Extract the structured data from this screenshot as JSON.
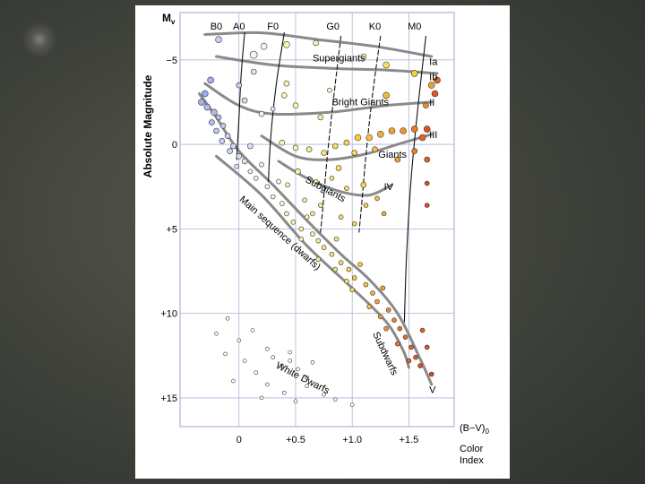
{
  "chart_data": {
    "type": "scatter",
    "title": "",
    "ylabel": "Absolute Magnitude",
    "y_axis_symbol": "Mv",
    "xlabel": "Color Index",
    "x_axis_symbol": "(B−V)0",
    "x_ticks": [
      {
        "value": 0,
        "label": "0"
      },
      {
        "value": 0.5,
        "label": "+0.5"
      },
      {
        "value": 1.0,
        "label": "+1.0"
      },
      {
        "value": 1.5,
        "label": "+1.5"
      }
    ],
    "y_ticks": [
      {
        "value": -5,
        "label": "−5"
      },
      {
        "value": 0,
        "label": "0"
      },
      {
        "value": 5,
        "label": "+5"
      },
      {
        "value": 10,
        "label": "+10"
      },
      {
        "value": 15,
        "label": "+15"
      }
    ],
    "xlim": [
      -0.52,
      1.9
    ],
    "ylim": [
      -7.8,
      16.7
    ],
    "y_inverted": true,
    "grid": true,
    "spectral_classes": [
      {
        "label": "B0",
        "x": -0.2
      },
      {
        "label": "A0",
        "x": 0.0
      },
      {
        "label": "F0",
        "x": 0.3
      },
      {
        "label": "G0",
        "x": 0.83
      },
      {
        "label": "K0",
        "x": 1.2
      },
      {
        "label": "M0",
        "x": 1.55
      }
    ],
    "luminosity_classes": [
      {
        "label": "Ia",
        "x": 1.68,
        "y": -4.9
      },
      {
        "label": "Ib",
        "x": 1.68,
        "y": -4.0
      },
      {
        "label": "II",
        "x": 1.68,
        "y": -2.5
      },
      {
        "label": "III",
        "x": 1.68,
        "y": -0.6
      },
      {
        "label": "IV",
        "x": 1.28,
        "y": 2.5
      },
      {
        "label": "V",
        "x": 1.68,
        "y": 14.5
      }
    ],
    "region_labels": [
      {
        "label": "Supergiants",
        "x": 0.65,
        "y": -4.9
      },
      {
        "label": "Bright Giants",
        "x": 0.82,
        "y": -2.3
      },
      {
        "label": "Giants",
        "x": 1.23,
        "y": 0.8
      },
      {
        "label": "Subgiants",
        "x": 0.58,
        "y": 2.2,
        "angle": 28
      },
      {
        "label": "Main sequence (dwarfs)",
        "x": 0.0,
        "y": 3.3,
        "angle": 42
      },
      {
        "label": "Subdwarfs",
        "x": 1.18,
        "y": 11.2,
        "angle": 65
      },
      {
        "label": "White Dwarfs",
        "x": 0.32,
        "y": 13.2,
        "angle": 27
      }
    ],
    "tracks": [
      {
        "name": "Ia",
        "points": [
          [
            -0.3,
            -6.5
          ],
          [
            0.2,
            -6.6
          ],
          [
            0.7,
            -6.2
          ],
          [
            1.2,
            -5.8
          ],
          [
            1.7,
            -5.2
          ]
        ]
      },
      {
        "name": "Ib",
        "points": [
          [
            -0.2,
            -5.2
          ],
          [
            0.3,
            -4.7
          ],
          [
            0.8,
            -4.5
          ],
          [
            1.3,
            -4.4
          ],
          [
            1.75,
            -4.2
          ]
        ]
      },
      {
        "name": "II",
        "points": [
          [
            -0.3,
            -3.6
          ],
          [
            0.0,
            -2.3
          ],
          [
            0.3,
            -1.8
          ],
          [
            0.8,
            -1.9
          ],
          [
            1.3,
            -2.3
          ],
          [
            1.7,
            -2.5
          ]
        ]
      },
      {
        "name": "III",
        "points": [
          [
            0.2,
            -0.5
          ],
          [
            0.5,
            0.7
          ],
          [
            0.8,
            0.9
          ],
          [
            1.1,
            0.6
          ],
          [
            1.4,
            0.0
          ],
          [
            1.7,
            -0.6
          ]
        ]
      },
      {
        "name": "IV",
        "points": [
          [
            0.35,
            1.0
          ],
          [
            0.6,
            2.0
          ],
          [
            0.9,
            2.8
          ],
          [
            1.15,
            3.0
          ],
          [
            1.35,
            2.4
          ]
        ]
      },
      {
        "name": "V",
        "points": [
          [
            -0.35,
            -3.0
          ],
          [
            -0.2,
            -1.6
          ],
          [
            0.0,
            0.4
          ],
          [
            0.3,
            2.4
          ],
          [
            0.6,
            4.5
          ],
          [
            0.9,
            6.5
          ],
          [
            1.15,
            8.0
          ],
          [
            1.4,
            10.0
          ],
          [
            1.6,
            12.7
          ],
          [
            1.7,
            14.2
          ]
        ]
      },
      {
        "name": "Subdwarfs",
        "points": [
          [
            -0.2,
            0.7
          ],
          [
            0.2,
            3.0
          ],
          [
            0.6,
            6.0
          ],
          [
            1.0,
            8.5
          ],
          [
            1.3,
            10.5
          ],
          [
            1.45,
            12.2
          ],
          [
            1.5,
            13.2
          ]
        ]
      },
      {
        "name": "boundary-1",
        "dashed": false,
        "points": [
          [
            0.05,
            -6.6
          ],
          [
            0.02,
            -4.2
          ],
          [
            0.0,
            -1.6
          ],
          [
            -0.02,
            0.9
          ]
        ]
      },
      {
        "name": "boundary-2",
        "dashed": false,
        "points": [
          [
            0.4,
            -6.6
          ],
          [
            0.33,
            -3.6
          ],
          [
            0.28,
            -0.4
          ],
          [
            0.26,
            2.2
          ]
        ]
      },
      {
        "name": "boundary-3",
        "dashed": true,
        "points": [
          [
            0.9,
            -6.4
          ],
          [
            0.84,
            -3.0
          ],
          [
            0.78,
            0.7
          ],
          [
            0.74,
            3.8
          ],
          [
            0.72,
            5.2
          ]
        ]
      },
      {
        "name": "boundary-4",
        "dashed": true,
        "points": [
          [
            1.25,
            -6.4
          ],
          [
            1.18,
            -3.0
          ],
          [
            1.12,
            0.7
          ],
          [
            1.08,
            3.8
          ],
          [
            1.06,
            5.2
          ]
        ]
      },
      {
        "name": "boundary-5",
        "dashed": false,
        "points": [
          [
            1.65,
            -6.4
          ],
          [
            1.58,
            -2.2
          ],
          [
            1.52,
            2.0
          ],
          [
            1.48,
            6.5
          ],
          [
            1.46,
            10.5
          ]
        ]
      }
    ],
    "stars": [
      [
        -0.18,
        -6.2,
        "#c8cdf5",
        6
      ],
      [
        0.13,
        -5.3,
        "#f6f7fc",
        7
      ],
      [
        0.22,
        -5.8,
        "#f6f6ee",
        6
      ],
      [
        0.42,
        -5.9,
        "#fbf5a8",
        6
      ],
      [
        0.68,
        -6.0,
        "#fbf5a8",
        5
      ],
      [
        1.1,
        -5.2,
        "#fbf0a8",
        5
      ],
      [
        1.3,
        -4.7,
        "#fbe060",
        6
      ],
      [
        1.55,
        -4.2,
        "#fbd040",
        6
      ],
      [
        1.7,
        -3.5,
        "#f0a030",
        6
      ],
      [
        1.75,
        -3.8,
        "#e86420",
        6
      ],
      [
        1.73,
        -3.0,
        "#e85020",
        6
      ],
      [
        1.3,
        -2.9,
        "#f5c030",
        6
      ],
      [
        1.65,
        -2.3,
        "#e89020",
        5
      ],
      [
        0.0,
        -3.5,
        "#c8cdf5",
        5
      ],
      [
        0.05,
        -2.6,
        "#d8dcf8",
        5
      ],
      [
        0.2,
        -1.8,
        "#f0f0fa",
        5
      ],
      [
        0.3,
        -2.1,
        "#e8e8f8",
        4
      ],
      [
        0.13,
        -4.3,
        "#e0e3fa",
        5
      ],
      [
        0.42,
        -3.6,
        "#fbf5b0",
        5
      ],
      [
        0.4,
        -2.9,
        "#fbf5b0",
        5
      ],
      [
        0.5,
        -2.3,
        "#fbf5b0",
        5
      ],
      [
        0.72,
        -1.6,
        "#fbf0a0",
        5
      ],
      [
        0.8,
        -3.2,
        "#fbf5c0",
        4
      ],
      [
        -0.25,
        -3.8,
        "#a8b0ee",
        6
      ],
      [
        -0.3,
        -3.0,
        "#9ea8ee",
        6
      ],
      [
        -0.33,
        -2.5,
        "#a8b0ee",
        6
      ],
      [
        -0.28,
        -2.2,
        "#b0b8f0",
        6
      ],
      [
        -0.22,
        -1.9,
        "#b0b8f0",
        6
      ],
      [
        -0.18,
        -1.6,
        "#b8c0f2",
        5
      ],
      [
        -0.24,
        -1.3,
        "#b8c0f2",
        5
      ],
      [
        -0.14,
        -1.1,
        "#c0c6f2",
        5
      ],
      [
        -0.2,
        -0.8,
        "#c0c6f2",
        5
      ],
      [
        -0.1,
        -0.5,
        "#c8cdf5",
        5
      ],
      [
        -0.15,
        -0.2,
        "#c8cdf5",
        5
      ],
      [
        -0.05,
        0.1,
        "#d0d5f6",
        5
      ],
      [
        -0.08,
        0.4,
        "#d0d5f6",
        5
      ],
      [
        0.0,
        0.7,
        "#dcdff8",
        5
      ],
      [
        0.05,
        1.0,
        "#e0e3fa",
        5
      ],
      [
        -0.02,
        1.3,
        "#e6e8fa",
        4
      ],
      [
        0.1,
        1.6,
        "#eeeffb",
        4
      ],
      [
        0.15,
        2.0,
        "#f4f4fc",
        4
      ],
      [
        0.1,
        0.1,
        "#dde0f8",
        5
      ],
      [
        0.2,
        1.2,
        "#f0f0fb",
        4
      ],
      [
        0.25,
        2.5,
        "#f6f6f6",
        4
      ],
      [
        0.3,
        3.1,
        "#f8f8e8",
        4
      ],
      [
        0.35,
        2.2,
        "#f6f6ee",
        4
      ],
      [
        0.38,
        3.5,
        "#fbfad8",
        4
      ],
      [
        0.42,
        4.1,
        "#fbf8c0",
        4
      ],
      [
        0.48,
        4.6,
        "#fbf6b0",
        4
      ],
      [
        0.55,
        5.0,
        "#fbf4a8",
        4
      ],
      [
        0.6,
        4.3,
        "#fbf4a8",
        4
      ],
      [
        0.65,
        5.3,
        "#fbf0a0",
        4
      ],
      [
        0.7,
        5.7,
        "#fbec90",
        4
      ],
      [
        0.75,
        6.1,
        "#fbe880",
        4
      ],
      [
        0.82,
        6.5,
        "#fbe478",
        4
      ],
      [
        0.86,
        5.6,
        "#fbe478",
        4
      ],
      [
        0.9,
        7.0,
        "#fbdd60",
        4
      ],
      [
        0.97,
        7.4,
        "#fbd650",
        4
      ],
      [
        1.02,
        7.9,
        "#fbcc40",
        4
      ],
      [
        1.07,
        7.1,
        "#fbcc40",
        4
      ],
      [
        1.12,
        8.3,
        "#f8c040",
        4
      ],
      [
        1.18,
        8.8,
        "#f6b030",
        4
      ],
      [
        1.22,
        9.3,
        "#f5a030",
        4
      ],
      [
        1.27,
        8.5,
        "#f5a030",
        4
      ],
      [
        1.32,
        9.8,
        "#f09030",
        4
      ],
      [
        1.37,
        10.4,
        "#ec8028",
        4
      ],
      [
        1.42,
        10.9,
        "#ec7828",
        4
      ],
      [
        1.47,
        11.4,
        "#e86a20",
        4
      ],
      [
        1.52,
        12.0,
        "#e86020",
        4
      ],
      [
        1.56,
        12.6,
        "#e45820",
        4
      ],
      [
        1.6,
        13.1,
        "#e45020",
        4
      ],
      [
        1.62,
        11.0,
        "#e86020",
        4
      ],
      [
        1.66,
        12.0,
        "#e45020",
        4
      ],
      [
        1.7,
        13.6,
        "#e04818",
        4
      ],
      [
        0.38,
        -0.1,
        "#fbf5b0",
        5
      ],
      [
        0.5,
        0.2,
        "#fbf0a0",
        5
      ],
      [
        0.62,
        0.3,
        "#fbec90",
        5
      ],
      [
        0.75,
        0.5,
        "#fbe470",
        5
      ],
      [
        0.85,
        0.1,
        "#fbdd60",
        5
      ],
      [
        0.95,
        -0.1,
        "#fbd650",
        5
      ],
      [
        1.05,
        -0.4,
        "#fbcc40",
        6
      ],
      [
        1.15,
        -0.4,
        "#f8c040",
        6
      ],
      [
        1.25,
        -0.6,
        "#f6b030",
        6
      ],
      [
        1.35,
        -0.8,
        "#f5a030",
        6
      ],
      [
        1.45,
        -0.8,
        "#f09030",
        6
      ],
      [
        1.55,
        -0.9,
        "#ec7828",
        6
      ],
      [
        1.62,
        -0.4,
        "#e86020",
        6
      ],
      [
        1.66,
        -0.9,
        "#e05018",
        6
      ],
      [
        0.88,
        1.4,
        "#fbdd60",
        5
      ],
      [
        1.02,
        0.5,
        "#fbd650",
        5
      ],
      [
        1.2,
        0.3,
        "#f8c040",
        5
      ],
      [
        1.4,
        0.9,
        "#f5a030",
        5
      ],
      [
        1.55,
        0.4,
        "#ec8028",
        5
      ],
      [
        1.66,
        0.9,
        "#e86020",
        5
      ],
      [
        1.66,
        2.3,
        "#e05018",
        4
      ],
      [
        1.66,
        3.6,
        "#e05018",
        4
      ],
      [
        0.52,
        1.6,
        "#fbf0a0",
        5
      ],
      [
        0.68,
        2.2,
        "#fbec90",
        4
      ],
      [
        0.82,
        2.0,
        "#fbe478",
        4
      ],
      [
        0.95,
        2.6,
        "#fbdd60",
        4
      ],
      [
        1.1,
        2.4,
        "#fbd650",
        5
      ],
      [
        1.22,
        3.2,
        "#f8c040",
        4
      ],
      [
        1.28,
        4.1,
        "#f6b030",
        4
      ],
      [
        1.12,
        3.6,
        "#fbcc40",
        4
      ],
      [
        0.72,
        3.6,
        "#fbec90",
        4
      ],
      [
        0.58,
        3.3,
        "#fbf0a0",
        4
      ],
      [
        0.9,
        4.3,
        "#fbdd60",
        4
      ],
      [
        1.02,
        4.7,
        "#fbd650",
        4
      ],
      [
        0.65,
        4.1,
        "#fbec90",
        4
      ],
      [
        0.43,
        2.4,
        "#fbf6b0",
        4
      ],
      [
        0.55,
        5.6,
        "#fbf4a8",
        4
      ],
      [
        0.7,
        6.8,
        "#fbec90",
        4
      ],
      [
        0.85,
        7.4,
        "#fbe478",
        4
      ],
      [
        1.0,
        8.6,
        "#fbd650",
        4
      ],
      [
        1.15,
        9.6,
        "#f8c040",
        4
      ],
      [
        1.3,
        10.9,
        "#f09030",
        4
      ],
      [
        1.4,
        11.8,
        "#ec7828",
        4
      ],
      [
        1.5,
        12.8,
        "#e86020",
        4
      ],
      [
        0.95,
        8.1,
        "#fbdd60",
        4
      ],
      [
        1.25,
        10.2,
        "#f5a030",
        4
      ],
      [
        -0.1,
        10.3,
        "#ffffff",
        3
      ],
      [
        -0.2,
        11.2,
        "#ffffff",
        3
      ],
      [
        0.0,
        11.6,
        "#ffffff",
        3
      ],
      [
        0.12,
        11.0,
        "#ffffff",
        3
      ],
      [
        -0.12,
        12.4,
        "#ffffff",
        3
      ],
      [
        0.05,
        12.8,
        "#ffffff",
        3
      ],
      [
        0.25,
        12.1,
        "#ffffff",
        3
      ],
      [
        0.3,
        12.6,
        "#ffffff",
        3
      ],
      [
        0.38,
        13.1,
        "#ffffff",
        3
      ],
      [
        0.45,
        12.8,
        "#ffffff",
        3
      ],
      [
        0.52,
        13.3,
        "#ffffff",
        3
      ],
      [
        0.6,
        13.8,
        "#ffffff",
        3
      ],
      [
        0.25,
        14.2,
        "#ffffff",
        3
      ],
      [
        0.4,
        14.7,
        "#ffffff",
        3
      ],
      [
        0.6,
        14.3,
        "#ffffff",
        3
      ],
      [
        0.5,
        15.2,
        "#ffffff",
        3
      ],
      [
        0.75,
        14.8,
        "#ffffff",
        3
      ],
      [
        0.85,
        15.1,
        "#ffffff",
        3
      ],
      [
        1.0,
        15.4,
        "#ffffff",
        3
      ],
      [
        0.2,
        15.0,
        "#ffffff",
        3
      ],
      [
        -0.05,
        14.0,
        "#ffffff",
        3
      ],
      [
        0.15,
        13.5,
        "#ffffff",
        3
      ],
      [
        0.45,
        12.3,
        "#ffffff",
        3
      ],
      [
        0.65,
        12.9,
        "#ffffff",
        3
      ]
    ]
  }
}
